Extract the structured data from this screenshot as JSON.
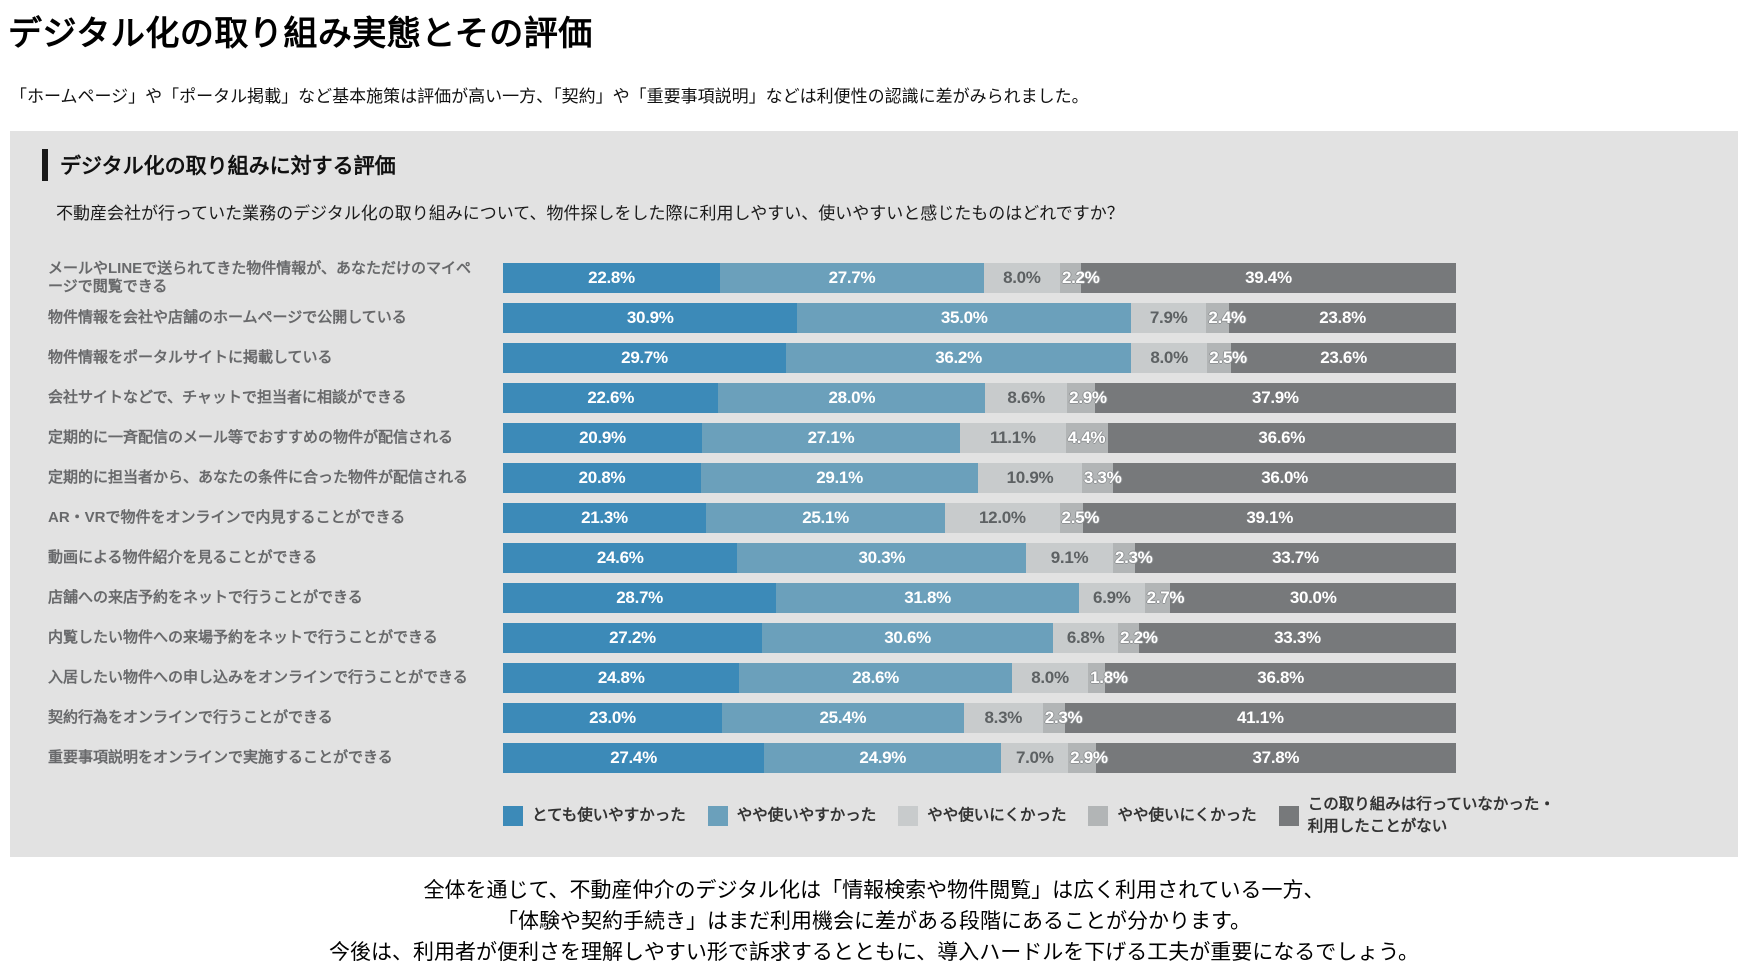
{
  "page": {
    "title": "デジタル化の取り組み実態とその評価",
    "subtitle": "「ホームページ」や「ポータル掲載」など基本施策は評価が高い一方、「契約」や「重要事項説明」などは利便性の認識に差がみられました。",
    "footer_lines": [
      "全体を通じて、不動産仲介のデジタル化は「情報検索や物件閲覧」は広く利用されている一方、",
      "「体験や契約手続き」はまだ利用機会に差がある段階にあることが分かります。",
      "今後は、利用者が便利さを理解しやすい形で訴求するとともに、導入ハードルを下げる工夫が重要になるでしょう。"
    ]
  },
  "panel": {
    "heading": "デジタル化の取り組みに対する評価",
    "question": "不動産会社が行っていた業務のデジタル化の取り組みについて、物件探しをした際に利用しやすい、使いやすいと感じたものはどれですか？"
  },
  "colors": {
    "panel_background": "#e2e2e2",
    "series": [
      "#3c8ab8",
      "#6ba0bb",
      "#c8cbcc",
      "#b2b5b6",
      "#77797b"
    ]
  },
  "legend": [
    {
      "label": "とても使いやすかった",
      "lines": [
        "とても使いやすかった"
      ],
      "color": "#3c8ab8"
    },
    {
      "label": "やや使いやすかった",
      "lines": [
        "やや使いやすかった"
      ],
      "color": "#6ba0bb"
    },
    {
      "label": "やや使いにくかった",
      "lines": [
        "やや使いにくかった"
      ],
      "color": "#c8cbcc"
    },
    {
      "label": "やや使いにくかった",
      "lines": [
        "やや使いにくかった"
      ],
      "color": "#b2b5b6"
    },
    {
      "label": "この取り組みは行っていなかった・利用したことがない",
      "lines": [
        "この取り組みは行っていなかった・",
        "利用したことがない"
      ],
      "color": "#77797b"
    }
  ],
  "chart_data": {
    "type": "bar",
    "orientation": "horizontal",
    "stacked": true,
    "unit": "%",
    "xlim": [
      0,
      100
    ],
    "grid": false,
    "legend_position": "bottom",
    "title": "デジタル化の取り組みに対する評価",
    "categories": [
      "メールやLINEで送られてきた物件情報が、あなただけのマイページで閲覧できる",
      "物件情報を会社や店舗のホームページで公開している",
      "物件情報をポータルサイトに掲載している",
      "会社サイトなどで、チャットで担当者に相談ができる",
      "定期的に一斉配信のメール等でおすすめの物件が配信される",
      "定期的に担当者から、あなたの条件に合った物件が配信される",
      "AR・VRで物件をオンラインで内見することができる",
      "動画による物件紹介を見ることができる",
      "店舗への来店予約をネットで行うことができる",
      "内覧したい物件への来場予約をネットで行うことができる",
      "入居したい物件への申し込みをオンラインで行うことができる",
      "契約行為をオンラインで行うことができる",
      "重要事項説明をオンラインで実施することができる"
    ],
    "series": [
      {
        "name": "とても使いやすかった",
        "values": [
          22.8,
          30.9,
          29.7,
          22.6,
          20.9,
          20.8,
          21.3,
          24.6,
          28.7,
          27.2,
          24.8,
          23.0,
          27.4
        ]
      },
      {
        "name": "やや使いやすかった",
        "values": [
          27.7,
          35.0,
          36.2,
          28.0,
          27.1,
          29.1,
          25.1,
          30.3,
          31.8,
          30.6,
          28.6,
          25.4,
          24.9
        ]
      },
      {
        "name": "やや使いにくかった",
        "values": [
          8.0,
          7.9,
          8.0,
          8.6,
          11.1,
          10.9,
          12.0,
          9.1,
          6.9,
          6.8,
          8.0,
          8.3,
          7.0
        ]
      },
      {
        "name": "やや使いにくかった",
        "values": [
          2.2,
          2.4,
          2.5,
          2.9,
          4.4,
          3.3,
          2.5,
          2.3,
          2.7,
          2.2,
          1.8,
          2.3,
          2.9
        ]
      },
      {
        "name": "この取り組みは行っていなかった・利用したことがない",
        "values": [
          39.4,
          23.8,
          23.6,
          37.9,
          36.6,
          36.0,
          39.1,
          33.7,
          30.0,
          33.3,
          36.8,
          41.1,
          37.8
        ]
      }
    ]
  }
}
